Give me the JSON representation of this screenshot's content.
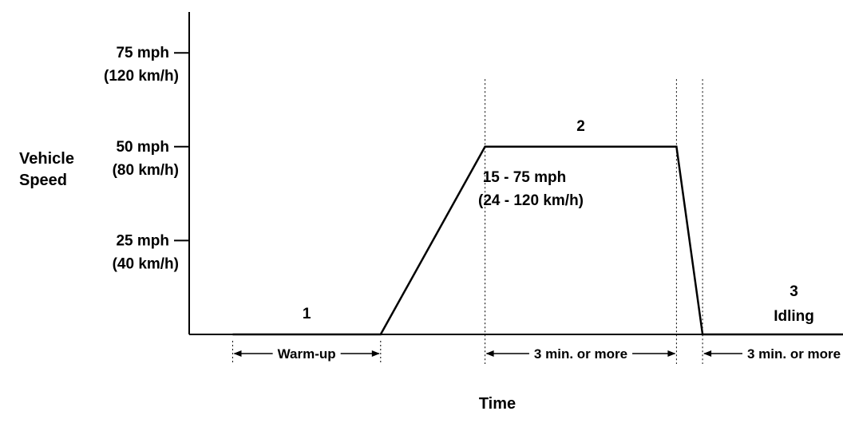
{
  "chart_data": {
    "type": "line",
    "ylabel_lines": [
      "Vehicle",
      "Speed"
    ],
    "xlabel": "Time",
    "y_ticks": [
      {
        "value": 75,
        "label": "75 mph",
        "sublabel": "(120 km/h)"
      },
      {
        "value": 50,
        "label": "50 mph",
        "sublabel": "(80 km/h)"
      },
      {
        "value": 25,
        "label": "25 mph",
        "sublabel": "(40 km/h)"
      }
    ],
    "ylim": [
      0,
      75
    ],
    "series": [
      {
        "points": [
          {
            "t": 5,
            "speed": 0
          },
          {
            "t": 22,
            "speed": 0
          },
          {
            "t": 34,
            "speed": 50
          },
          {
            "t": 56,
            "speed": 50
          },
          {
            "t": 59,
            "speed": 0
          },
          {
            "t": 80,
            "speed": 0
          }
        ]
      }
    ],
    "phases": [
      {
        "number": "1",
        "name": "",
        "duration": "Warm-up",
        "t_start": 5,
        "t_end": 22
      },
      {
        "number": "2",
        "name": "",
        "duration": "3 min. or  more",
        "t_start": 34,
        "t_end": 56
      },
      {
        "number": "3",
        "name": "Idling",
        "duration": "3 min. or  more",
        "t_start": 59,
        "t_end": 80
      }
    ],
    "annotation": {
      "line1": "15 - 75 mph",
      "line2": "(24 - 120 km/h)"
    },
    "grid": false,
    "legend": "none"
  }
}
